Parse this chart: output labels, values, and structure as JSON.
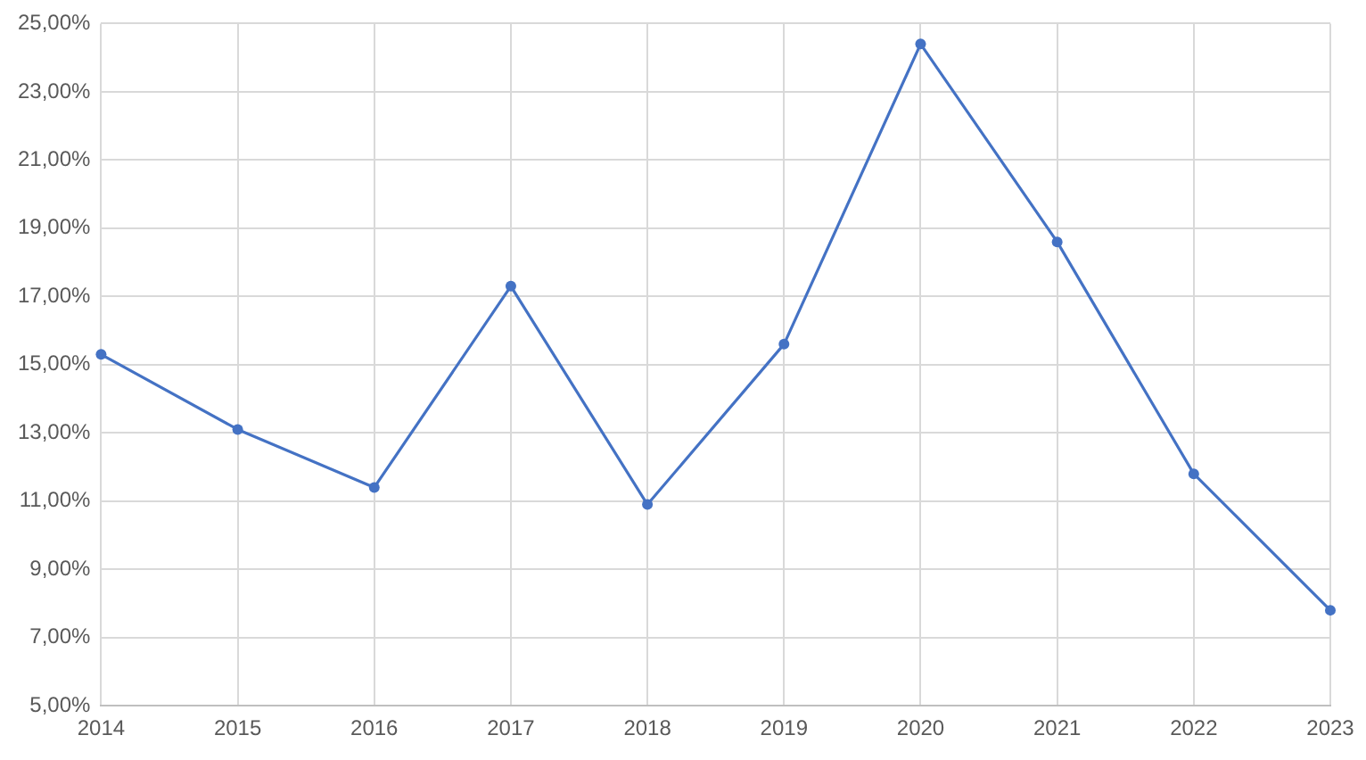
{
  "chart_data": {
    "type": "line",
    "categories": [
      "2014",
      "2015",
      "2016",
      "2017",
      "2018",
      "2019",
      "2020",
      "2021",
      "2022",
      "2023"
    ],
    "series": [
      {
        "color": "#4472c4",
        "values": [
          15.3,
          13.1,
          11.4,
          17.3,
          10.9,
          15.6,
          24.4,
          18.6,
          11.8,
          7.8
        ]
      }
    ],
    "ylim": [
      5,
      25
    ],
    "yticks": [
      {
        "value": 5,
        "label": "5,00%"
      },
      {
        "value": 7,
        "label": "7,00%"
      },
      {
        "value": 9,
        "label": "9,00%"
      },
      {
        "value": 11,
        "label": "11,00%"
      },
      {
        "value": 13,
        "label": "13,00%"
      },
      {
        "value": 15,
        "label": "15,00%"
      },
      {
        "value": 17,
        "label": "17,00%"
      },
      {
        "value": 19,
        "label": "19,00%"
      },
      {
        "value": 21,
        "label": "21,00%"
      },
      {
        "value": 23,
        "label": "23,00%"
      },
      {
        "value": 25,
        "label": "25,00%"
      }
    ],
    "grid": true,
    "marker": "circle",
    "line_style": "solid",
    "legend": false
  }
}
